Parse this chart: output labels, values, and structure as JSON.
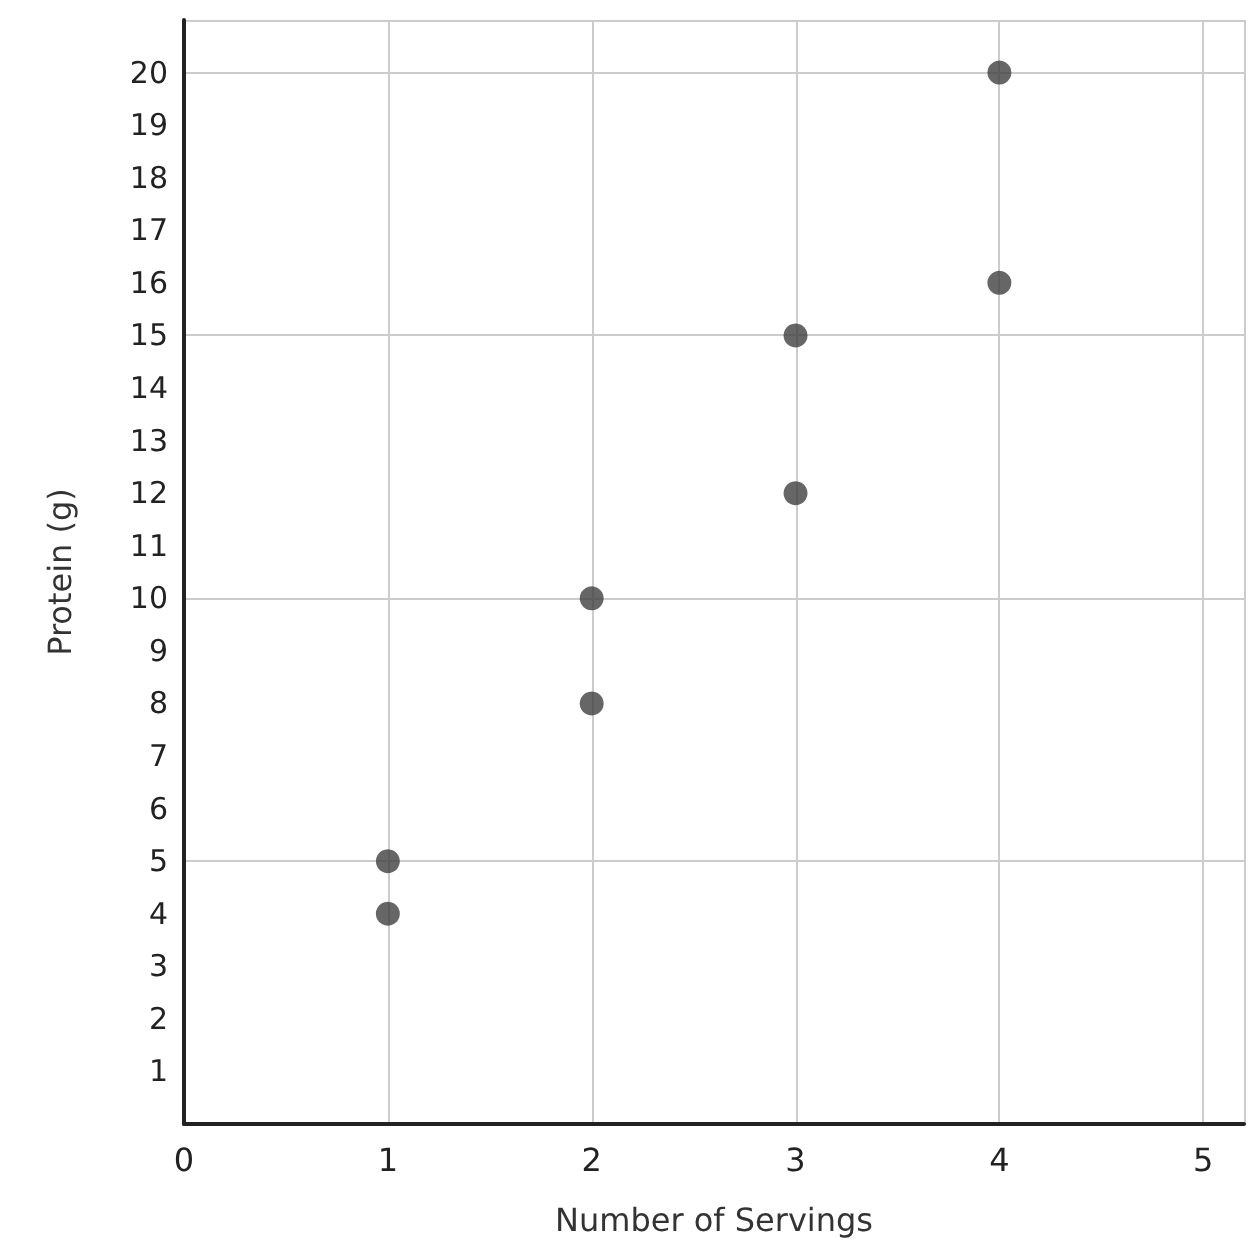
{
  "chart_data": {
    "type": "scatter",
    "xlabel": "Number of Servings",
    "ylabel": "Protein (g)",
    "x": [
      1,
      1,
      2,
      2,
      3,
      3,
      4,
      4
    ],
    "series": [
      {
        "color": "#404040",
        "values": [
          4,
          5,
          8,
          10,
          12,
          15,
          16,
          20
        ]
      }
    ],
    "xlim": [
      0,
      5.2
    ],
    "xticks": [
      0,
      1,
      2,
      3,
      4,
      5
    ],
    "ylim": [
      0,
      21
    ],
    "yticks": [
      1,
      2,
      3,
      4,
      5,
      6,
      7,
      8,
      9,
      10,
      11,
      12,
      13,
      14,
      15,
      16,
      17,
      18,
      19,
      20
    ],
    "grid": true,
    "marker": "circle"
  }
}
